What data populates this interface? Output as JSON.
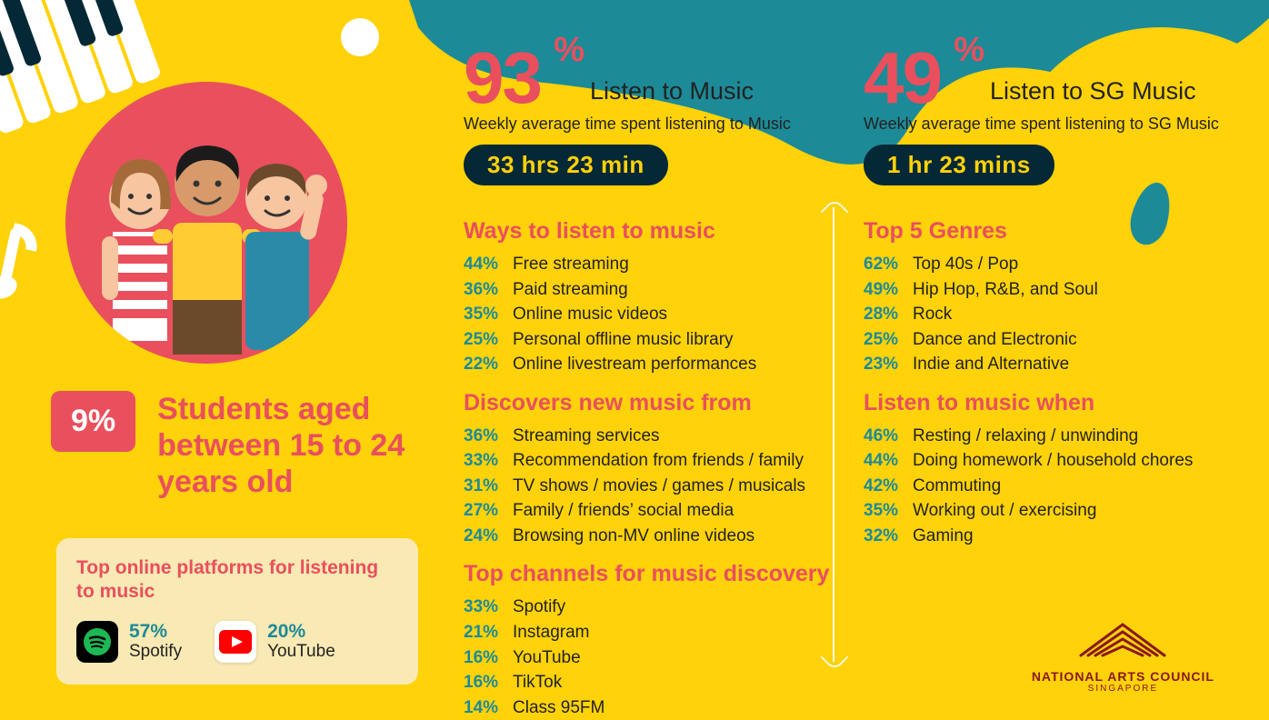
{
  "colors": {
    "background": "#ffd20a",
    "teal": "#1d8a97",
    "red": "#e94f5d",
    "dark": "#052836",
    "card": "#f9e9b4",
    "logo": "#8a1820"
  },
  "demographic": {
    "percent": "9%",
    "label": "Students aged between 15 to 24 years old"
  },
  "platforms": {
    "title": "Top online platforms for listening to music",
    "items": [
      {
        "icon": "spotify",
        "percent": "57%",
        "name": "Spotify"
      },
      {
        "icon": "youtube",
        "percent": "20%",
        "name": "YouTube"
      }
    ]
  },
  "col1": {
    "bignum": "93",
    "bigpct": "%",
    "biglabel": "Listen to Music",
    "sub": "Weekly average time spent listening to Music",
    "pill": "33 hrs 23 min",
    "sections": [
      {
        "title": "Ways to listen to music",
        "items": [
          {
            "p": "44%",
            "t": "Free streaming"
          },
          {
            "p": "36%",
            "t": "Paid streaming"
          },
          {
            "p": "35%",
            "t": "Online music videos"
          },
          {
            "p": "25%",
            "t": "Personal offline music library"
          },
          {
            "p": "22%",
            "t": "Online livestream performances"
          }
        ]
      },
      {
        "title": "Discovers new music from",
        "items": [
          {
            "p": "36%",
            "t": "Streaming services"
          },
          {
            "p": "33%",
            "t": "Recommendation from friends / family"
          },
          {
            "p": "31%",
            "t": "TV shows / movies / games / musicals"
          },
          {
            "p": "27%",
            "t": "Family / friends’ social media"
          },
          {
            "p": "24%",
            "t": "Browsing non-MV online videos"
          }
        ]
      },
      {
        "title": "Top channels for music discovery",
        "items": [
          {
            "p": "33%",
            "t": "Spotify"
          },
          {
            "p": "21%",
            "t": "Instagram"
          },
          {
            "p": "16%",
            "t": "YouTube"
          },
          {
            "p": "16%",
            "t": "TikTok"
          },
          {
            "p": "14%",
            "t": "Class 95FM"
          }
        ]
      }
    ]
  },
  "col2": {
    "bignum": "49",
    "bigpct": "%",
    "biglabel": "Listen to SG Music",
    "sub": "Weekly average time spent listening to SG Music",
    "pill": "1 hr 23 mins",
    "sections": [
      {
        "title": "Top 5 Genres",
        "items": [
          {
            "p": "62%",
            "t": "Top 40s / Pop"
          },
          {
            "p": "49%",
            "t": "Hip Hop, R&B, and Soul"
          },
          {
            "p": "28%",
            "t": "Rock"
          },
          {
            "p": "25%",
            "t": "Dance and Electronic"
          },
          {
            "p": "23%",
            "t": "Indie and Alternative"
          }
        ]
      },
      {
        "title": "Listen to music when",
        "items": [
          {
            "p": "46%",
            "t": "Resting / relaxing / unwinding"
          },
          {
            "p": "44%",
            "t": "Doing homework / household chores"
          },
          {
            "p": "42%",
            "t": "Commuting"
          },
          {
            "p": "35%",
            "t": "Working out / exercising"
          },
          {
            "p": "32%",
            "t": "Gaming"
          }
        ]
      }
    ]
  },
  "logo": {
    "line1": "NATIONAL ARTS COUNCIL",
    "line2": "SINGAPORE"
  }
}
